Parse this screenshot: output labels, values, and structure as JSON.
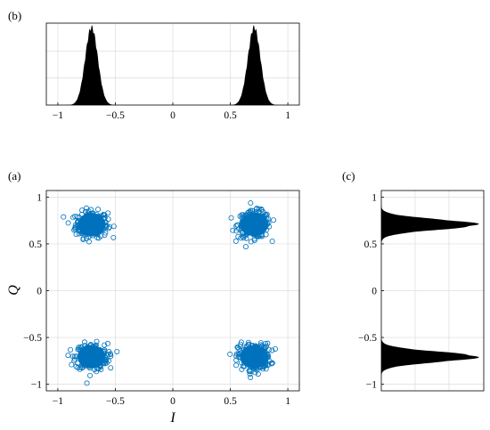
{
  "chart_data": [
    {
      "panel": "(b)",
      "type": "area",
      "title": "",
      "xlabel": "",
      "ylabel": "",
      "xlim": [
        -1.1,
        1.1
      ],
      "x_ticks": [
        -1,
        -0.5,
        0,
        0.5,
        1
      ],
      "x_tick_labels": [
        "−1",
        "−0.5",
        "0",
        "0.5",
        "1"
      ],
      "y_tick_labels": [],
      "grid": true,
      "series": [
        {
          "values": {
            "peaks_at": [
              -0.707,
              0.707
            ],
            "sigma": 0.055
          }
        }
      ],
      "color": "#000000"
    },
    {
      "panel": "(a)",
      "type": "scatter",
      "title": "",
      "xlabel": "I",
      "ylabel": "Q",
      "xlim": [
        -1.1,
        1.1
      ],
      "ylim": [
        -1.07,
        1.07
      ],
      "x_ticks": [
        -1,
        -0.5,
        0,
        0.5,
        1
      ],
      "x_tick_labels": [
        "−1",
        "−0.5",
        "0",
        "0.5",
        "1"
      ],
      "y_ticks": [
        -1,
        -0.5,
        0,
        0.5,
        1
      ],
      "y_tick_labels": [
        "−1",
        "−0.5",
        "0",
        "0.5",
        "1"
      ],
      "grid": true,
      "marker": "open circle",
      "color": "#0072bd",
      "clusters": [
        {
          "x": -0.707,
          "y": 0.707
        },
        {
          "x": 0.707,
          "y": 0.707
        },
        {
          "x": -0.707,
          "y": -0.707
        },
        {
          "x": 0.707,
          "y": -0.707
        }
      ],
      "cluster_spread": 0.07
    },
    {
      "panel": "(c)",
      "type": "area",
      "title": "",
      "xlabel": "",
      "ylabel": "",
      "orientation": "horizontal",
      "ylim": [
        -1.07,
        1.07
      ],
      "y_ticks": [
        -1,
        -0.5,
        0,
        0.5,
        1
      ],
      "y_tick_labels": [
        "−1",
        "−0.5",
        "0",
        "0.5",
        "1"
      ],
      "grid": true,
      "series": [
        {
          "values": {
            "peaks_at": [
              -0.707,
              0.707
            ],
            "sigma": 0.055,
            "skew": "right"
          }
        }
      ],
      "color": "#000000"
    }
  ]
}
